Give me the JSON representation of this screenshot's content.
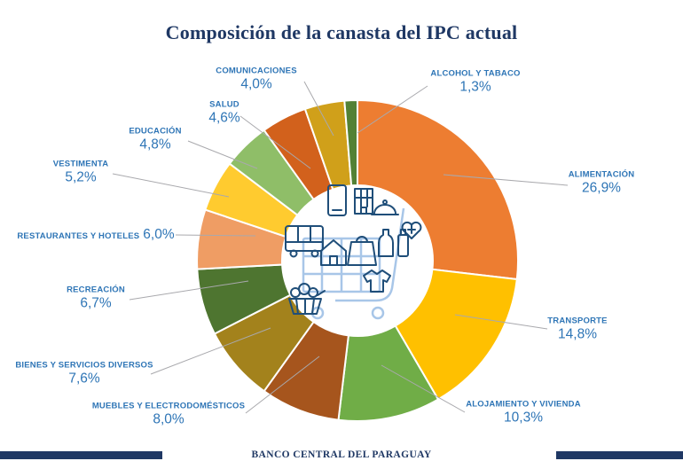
{
  "title": "Composición de la canasta del IPC actual",
  "footer": {
    "text": "BANCO CENTRAL DEL PARAGUAY"
  },
  "colors": {
    "title_navy": "#1F3864",
    "label_blue": "#2E75B6",
    "leader_gray": "#A9A9AD",
    "footer_navy": "#1F3864",
    "cart_light_blue": "#A8C6E8",
    "icon_navy": "#1F4E79",
    "slice_divider": "#FFFFFF"
  },
  "center_illustration": {
    "name": "shopping-cart-with-goods",
    "items": [
      "smartphone",
      "building",
      "food-cloche",
      "heart-health",
      "bus",
      "house",
      "shopping-bag",
      "bottles",
      "t-shirt",
      "produce-basket",
      "cart"
    ]
  },
  "chart_data": {
    "type": "pie",
    "subtype": "donut",
    "title": "Composición de la canasta del IPC actual",
    "unit": "%",
    "start_angle_deg": 0,
    "direction": "clockwise",
    "legend_position": "outside-callouts",
    "categories": [
      "ALIMENTACIÓN",
      "TRANSPORTE",
      "ALOJAMIENTO Y VIVIENDA",
      "MUEBLES Y ELECTRODOMÉSTICOS",
      "BIENES Y SERVICIOS DIVERSOS",
      "RECREACIÓN",
      "RESTAURANTES Y HOTELES",
      "VESTIMENTA",
      "EDUCACIÓN",
      "SALUD",
      "COMUNICACIONES",
      "ALCOHOL Y TABACO"
    ],
    "values": [
      26.9,
      14.8,
      10.3,
      8.0,
      7.6,
      6.7,
      6.0,
      5.2,
      4.8,
      4.6,
      4.0,
      1.3
    ],
    "value_labels": [
      "26,9%",
      "14,8%",
      "10,3%",
      "8,0%",
      "7,6%",
      "6,7%",
      "6,0%",
      "5,2%",
      "4,8%",
      "4,6%",
      "4,0%",
      "1,3%"
    ],
    "slice_colors": [
      "#ED7D31",
      "#FFC000",
      "#70AD47",
      "#A6551D",
      "#A3821C",
      "#4E7530",
      "#EF9D64",
      "#FFCB2F",
      "#8FBE68",
      "#D2611C",
      "#D0A01A",
      "#538135"
    ]
  }
}
